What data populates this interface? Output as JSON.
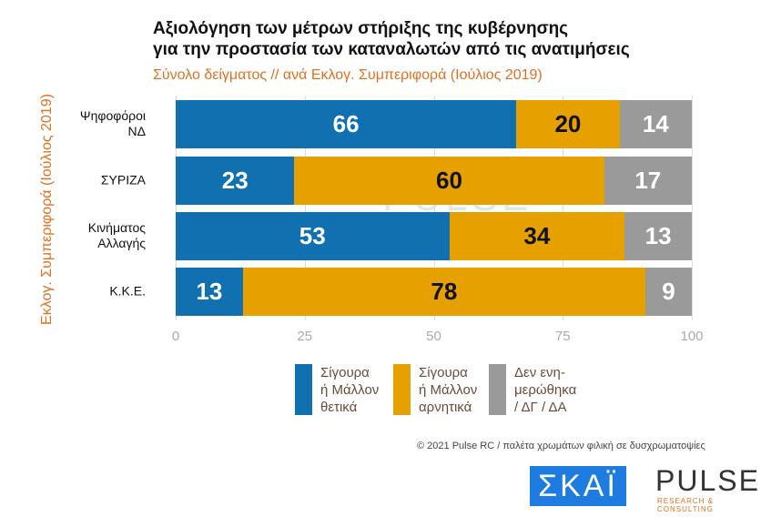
{
  "chart_data": {
    "type": "bar",
    "stacked": true,
    "orientation": "horizontal",
    "title": "Αξιολόγηση των μέτρων στήριξης της κυβέρνησης\nγια την προστασία των καταναλωτών από τις ανατιμήσεις",
    "title_lines": [
      "Αξιολόγηση των μέτρων στήριξης της κυβέρνησης",
      "για την προστασία των καταναλωτών από τις ανατιμήσεις"
    ],
    "subtitle": "Σύνολο δείγματος // ανά Εκλογ. Συμπεριφορά (Ιούλιος 2019)",
    "ylabel": "Εκλογ. Συμπεριφορά (Ιούλιος 2019)",
    "categories": [
      "Ψηφοφόροι\nΝΔ",
      "ΣΥΡΙΖΑ",
      "Κινήματος\nΑλλαγής",
      "Κ.Κ.Ε."
    ],
    "xlim": [
      0,
      100
    ],
    "xticks": [
      0,
      25,
      50,
      75,
      100
    ],
    "series": [
      {
        "name": "Σίγουρα\nή Μάλλον\nθετικά",
        "color": "#1170b0",
        "label_color": "#ffffff",
        "values": [
          66,
          23,
          53,
          13
        ]
      },
      {
        "name": "Σίγουρα\nή Μάλλον\nαρνητικά",
        "color": "#e6a100",
        "label_color": "#111111",
        "values": [
          20,
          60,
          34,
          78
        ]
      },
      {
        "name": "Δεν ενη-\nμερώθηκα\n/ ΔΓ / ΔΑ",
        "color": "#9a9a9a",
        "label_color": "#ffffff",
        "values": [
          14,
          17,
          13,
          9
        ]
      }
    ],
    "legend": "bottom"
  },
  "footer": "© 2021 Pulse RC   /   παλέτα χρωμάτων φιλική σε δυσχρωματοψίες",
  "logos": {
    "skai": "ΣΚΑΪ",
    "pulse": "PULSE",
    "pulse_sub": "RESEARCH & CONSULTING",
    "watermark": "PULSE"
  }
}
